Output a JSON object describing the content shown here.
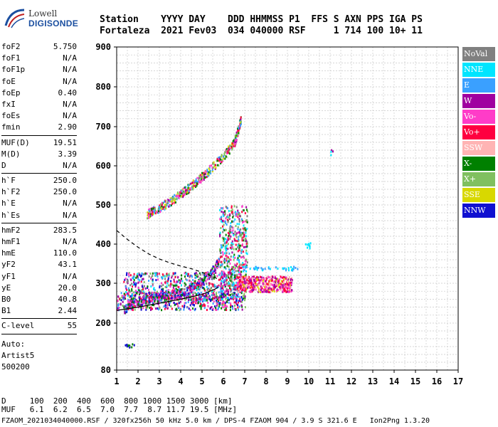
{
  "logo": {
    "line1": "Lowell",
    "line2": "DIGISONDE"
  },
  "header": {
    "row1": "Station    YYYY DAY    DDD HHMMSS P1  FFS S AXN PPS IGA PS",
    "row2": "Fortaleza  2021 Fev03  034 040000 RSF     1 714 100 10+ 11"
  },
  "params": {
    "group1": [
      {
        "label": "foF2",
        "value": "5.750"
      },
      {
        "label": "foF1",
        "value": "N/A"
      },
      {
        "label": "foF1p",
        "value": "N/A"
      },
      {
        "label": "foE",
        "value": "N/A"
      },
      {
        "label": "foEp",
        "value": "0.40"
      },
      {
        "label": "fxI",
        "value": "N/A"
      },
      {
        "label": "foEs",
        "value": "N/A"
      },
      {
        "label": "fmin",
        "value": "2.90"
      }
    ],
    "group2": [
      {
        "label": "MUF(D)",
        "value": "19.51"
      },
      {
        "label": "M(D)",
        "value": "3.39"
      },
      {
        "label": "D",
        "value": "N/A"
      }
    ],
    "group3": [
      {
        "label": "h`F",
        "value": "250.0"
      },
      {
        "label": "h`F2",
        "value": "250.0"
      },
      {
        "label": "h`E",
        "value": "N/A"
      },
      {
        "label": "h`Es",
        "value": "N/A"
      }
    ],
    "group4": [
      {
        "label": "hmF2",
        "value": "283.5"
      },
      {
        "label": "hmF1",
        "value": "N/A"
      },
      {
        "label": "hmE",
        "value": "110.0"
      },
      {
        "label": "yF2",
        "value": "43.1"
      },
      {
        "label": "yF1",
        "value": "N/A"
      },
      {
        "label": "yE",
        "value": "20.0"
      },
      {
        "label": "B0",
        "value": "40.8"
      },
      {
        "label": "B1",
        "value": "2.44"
      }
    ],
    "group5": [
      {
        "label": "C-level",
        "value": "55"
      }
    ],
    "auto": [
      "Auto:",
      "Artist5",
      "500200"
    ]
  },
  "legend": [
    {
      "label": "NoVal",
      "color": "#808080"
    },
    {
      "label": "NNE",
      "color": "#00e5ff"
    },
    {
      "label": "E",
      "color": "#3aa0ff"
    },
    {
      "label": "W",
      "color": "#a000a0"
    },
    {
      "label": "Vo-",
      "color": "#ff3cc8"
    },
    {
      "label": "Vo+",
      "color": "#ff0040"
    },
    {
      "label": "SSW",
      "color": "#ffb4b4"
    },
    {
      "label": "X-",
      "color": "#008000"
    },
    {
      "label": "X+",
      "color": "#80c060"
    },
    {
      "label": "SSE",
      "color": "#d8d800"
    },
    {
      "label": "NNW",
      "color": "#1010d0"
    }
  ],
  "footer": {
    "row1": "D     100  200  400  600  800 1000 1500 3000 [km]",
    "row2": "MUF   6.1  6.2  6.5  7.0  7.7  8.7 11.7 19.5 [MHz]",
    "row3": "FZAOM_2021034040000.RSF / 320fx256h 50 kHz 5.0 km / DPS-4 FZAOM 904 / 3.9 S 321.6 E   Ion2Png 1.3.20"
  },
  "chart_data": {
    "type": "scatter",
    "x_ticks": [
      "1",
      "2",
      "3",
      "4",
      "5",
      "6",
      "7",
      "8",
      "9",
      "10",
      "11",
      "12",
      "13",
      "14",
      "15",
      "16",
      "17"
    ],
    "y_ticks": [
      "80",
      "200",
      "300",
      "400",
      "500",
      "600",
      "700",
      "800",
      "900"
    ],
    "xlim": [
      1,
      17
    ],
    "ylim": [
      80,
      900
    ],
    "grid": true,
    "legend_position": "right",
    "clusters": [
      {
        "x": [
          1.0,
          7.0
        ],
        "y": [
          235,
          280
        ],
        "n": 500,
        "colors": [
          "#ff0040",
          "#ff3cc8",
          "#a000a0",
          "#3aa0ff",
          "#008000",
          "#80c060",
          "#1010d0"
        ]
      },
      {
        "x": [
          1.3,
          6.6
        ],
        "y": [
          260,
          330
        ],
        "n": 600,
        "colors": [
          "#ff0040",
          "#ff3cc8",
          "#a000a0",
          "#3aa0ff",
          "#00e5ff",
          "#008000",
          "#80c060",
          "#1010d0",
          "#808080"
        ]
      },
      {
        "x": [
          5.8,
          7.1
        ],
        "y": [
          280,
          500
        ],
        "n": 500,
        "colors": [
          "#ff0040",
          "#ff3cc8",
          "#a000a0",
          "#3aa0ff",
          "#00e5ff",
          "#008000",
          "#80c060",
          "#808080"
        ]
      },
      {
        "x": [
          6.6,
          9.2
        ],
        "y": [
          280,
          320
        ],
        "n": 500,
        "colors": [
          "#ff0040",
          "#ff3cc8",
          "#d8d800",
          "#ffb4b4",
          "#a000a0"
        ]
      },
      {
        "x": [
          6.8,
          9.5
        ],
        "y": [
          335,
          345
        ],
        "n": 40,
        "colors": [
          "#00e5ff",
          "#3aa0ff"
        ]
      },
      {
        "x": [
          9.8,
          10.1
        ],
        "y": [
          390,
          405
        ],
        "n": 10,
        "colors": [
          "#00e5ff"
        ]
      },
      {
        "x": [
          11.0,
          11.1
        ],
        "y": [
          625,
          645
        ],
        "n": 4,
        "colors": [
          "#00e5ff",
          "#a000a0"
        ]
      },
      {
        "x": [
          1.3,
          1.8
        ],
        "y": [
          140,
          150
        ],
        "n": 12,
        "colors": [
          "#1010d0",
          "#808080",
          "#008000"
        ]
      }
    ],
    "lower_trace": {
      "x": [
        1.3,
        1.8,
        2.4,
        3.0,
        3.6,
        4.2,
        4.8,
        5.4,
        5.8
      ],
      "y": [
        235,
        252,
        262,
        268,
        273,
        282,
        298,
        330,
        360
      ]
    },
    "upper_trace": {
      "x": [
        2.4,
        3.0,
        3.6,
        4.2,
        4.8,
        5.4,
        6.0,
        6.5,
        6.8
      ],
      "y": [
        478,
        495,
        515,
        538,
        565,
        595,
        628,
        660,
        720
      ]
    },
    "profile_solid": {
      "x": [
        1.0,
        2.0,
        3.0,
        4.0,
        5.0,
        5.6,
        5.75
      ],
      "y": [
        232,
        240,
        250,
        260,
        272,
        285,
        290
      ]
    },
    "profile_dashed": {
      "x": [
        1.0,
        1.5,
        2.0,
        2.5,
        3.0,
        3.5,
        4.0,
        4.5,
        5.0,
        5.5,
        5.75
      ],
      "y": [
        435,
        412,
        392,
        375,
        362,
        352,
        344,
        337,
        328,
        318,
        310
      ]
    }
  }
}
